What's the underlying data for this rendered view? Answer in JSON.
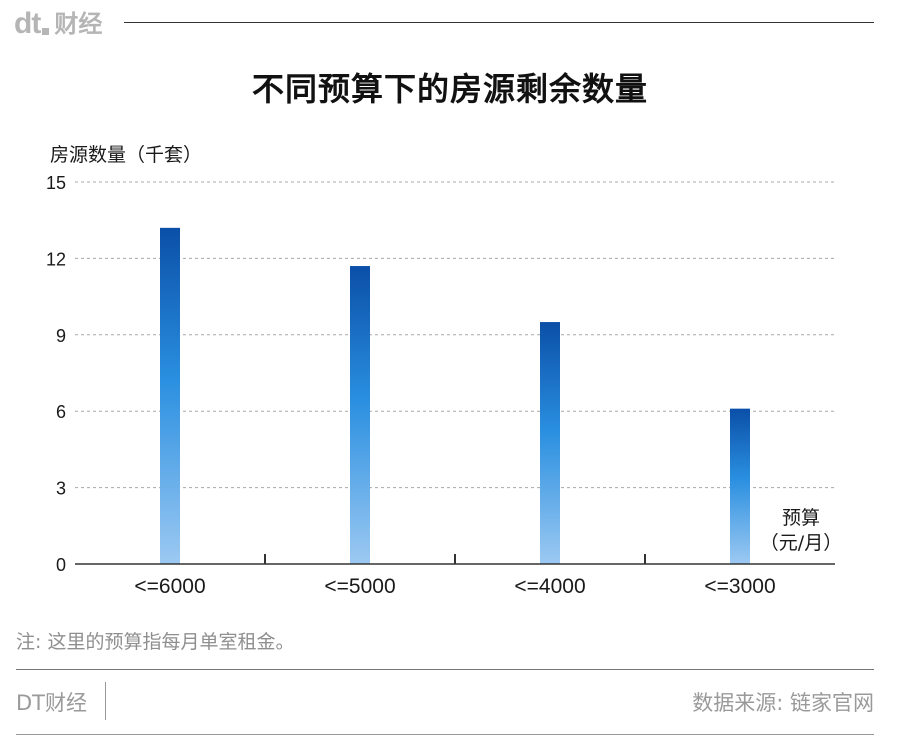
{
  "header": {
    "logo_mark": "dt",
    "logo_text": "财经"
  },
  "chart_data": {
    "type": "bar",
    "title": "不同预算下的房源剩余数量",
    "ylabel": "房源数量（千套）",
    "xlabel_line1": "预算",
    "xlabel_line2": "（元/月）",
    "categories": [
      "<=6000",
      "<=5000",
      "<=4000",
      "<=3000"
    ],
    "values": [
      13.2,
      11.7,
      9.5,
      6.1
    ],
    "ylim": [
      0,
      15
    ],
    "yticks": [
      0,
      3,
      6,
      9,
      12,
      15
    ],
    "grid": true,
    "colors": {
      "bar_top": "#0a4fa8",
      "bar_mid": "#2a8fe0",
      "bar_bottom": "#9cc9f2"
    }
  },
  "note": "注: 这里的预算指每月单室租金。",
  "footer": {
    "brand": "DT财经",
    "source": "数据来源: 链家官网"
  }
}
